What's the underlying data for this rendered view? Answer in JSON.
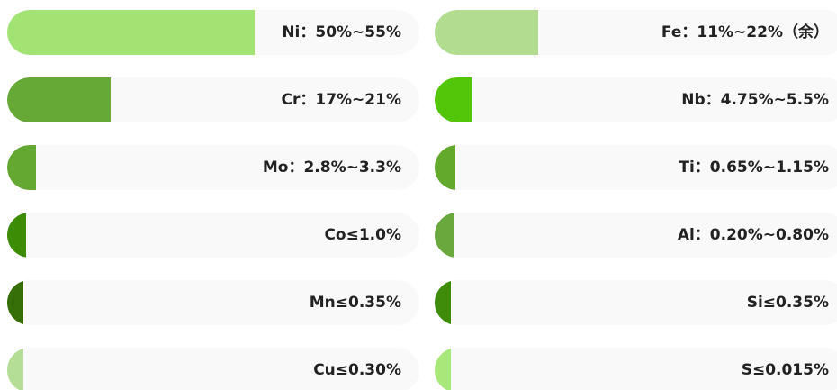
{
  "chart_data": {
    "type": "bar",
    "orientation": "horizontal",
    "items": [
      {
        "label": "Ni：50%~55%",
        "fill": 0.6,
        "color": "#a3e374"
      },
      {
        "label": "Fe：11%~22%（余）",
        "fill": 0.25,
        "color": "#b2dd8f"
      },
      {
        "label": "Cr：17%~21%",
        "fill": 0.25,
        "color": "#67a937"
      },
      {
        "label": "Nb：4.75%~5.5%",
        "fill": 0.09,
        "color": "#54c60a"
      },
      {
        "label": "Mo：2.8%~3.3%",
        "fill": 0.07,
        "color": "#65a831"
      },
      {
        "label": "Ti：0.65%~1.15%",
        "fill": 0.05,
        "color": "#63a92c"
      },
      {
        "label": "Co≤1.0%",
        "fill": 0.045,
        "color": "#3c8c06"
      },
      {
        "label": "Al：0.20%~0.80%",
        "fill": 0.045,
        "color": "#68a83c"
      },
      {
        "label": "Mn≤0.35%",
        "fill": 0.04,
        "color": "#366f07"
      },
      {
        "label": "Si≤0.35%",
        "fill": 0.04,
        "color": "#3f8c0b"
      },
      {
        "label": "Cu≤0.30%",
        "fill": 0.04,
        "color": "#b4dd96"
      },
      {
        "label": "S≤0.015%",
        "fill": 0.04,
        "color": "#a8e87a"
      }
    ]
  }
}
